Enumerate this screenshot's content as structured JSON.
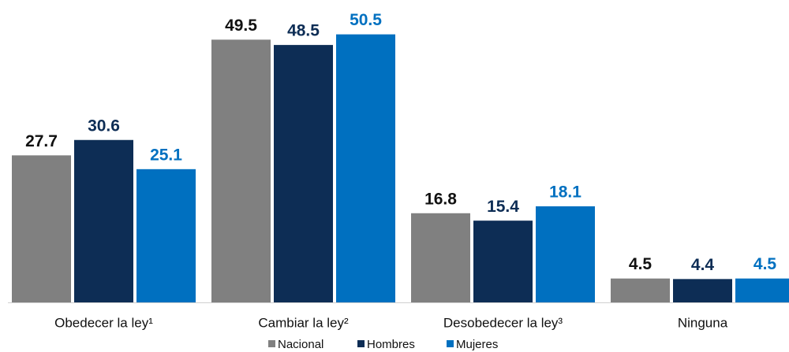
{
  "chart_data": {
    "type": "bar",
    "categories": [
      "Obedecer la ley¹",
      "Cambiar la ley²",
      "Desobedecer la ley³",
      "Ninguna"
    ],
    "series": [
      {
        "name": "Nacional",
        "color": "#808080",
        "values": [
          27.7,
          49.5,
          16.8,
          4.5
        ]
      },
      {
        "name": "Hombres",
        "color": "#0d2d55",
        "values": [
          30.6,
          48.5,
          15.4,
          4.4
        ]
      },
      {
        "name": "Mujeres",
        "color": "#0070c0",
        "values": [
          25.1,
          50.5,
          18.1,
          4.5
        ]
      }
    ],
    "legend": "bottom"
  }
}
